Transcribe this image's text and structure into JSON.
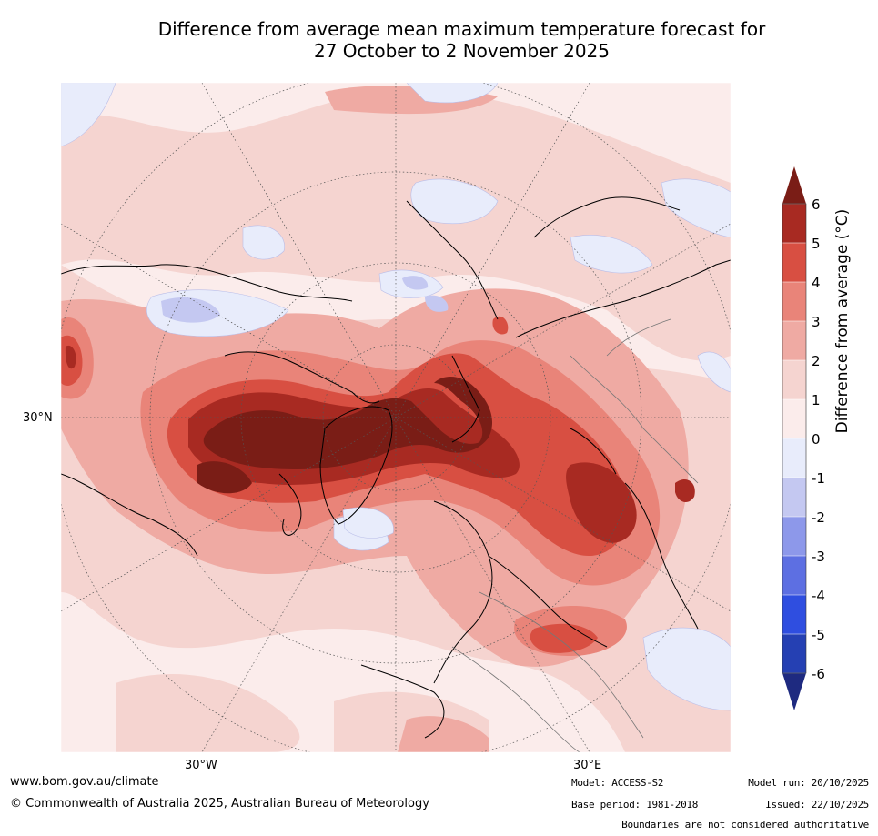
{
  "title": {
    "line1": "Difference from average mean maximum temperature forecast for",
    "line2": "27 October to 2 November 2025"
  },
  "map": {
    "lon_labels": [
      "30°W",
      "30°E"
    ],
    "lat_labels": [
      "30°N"
    ]
  },
  "colorbar": {
    "label": "Difference from average (°C)",
    "ticks": [
      "6",
      "5",
      "4",
      "3",
      "2",
      "1",
      "0",
      "-1",
      "-2",
      "-3",
      "-4",
      "-5",
      "-6"
    ],
    "colors": {
      "above_6": "#7a1d16",
      "5_6": "#a82a22",
      "4_5": "#d84f42",
      "3_4": "#e98479",
      "2_3": "#efaaa3",
      "1_2": "#f5d4d0",
      "0_1": "#fbeceb",
      "m1_0": "#e8ecfb",
      "m2_m1": "#c4c8f1",
      "m3_m2": "#8d98ea",
      "m4_m3": "#5d6fe2",
      "m5_m4": "#2f4ee0",
      "m6_m5": "#2540b3",
      "below_m6": "#1e2a80"
    }
  },
  "footer": {
    "website": "www.bom.gov.au/climate",
    "copyright": "© Commonwealth of Australia 2025, Australian Bureau of Meteorology",
    "model": "Model: ACCESS-S2",
    "base_period": "Base period: 1981-2018",
    "model_run": "Model run: 20/10/2025",
    "issued": "Issued: 22/10/2025",
    "disclaimer": "Boundaries are not considered authoritative"
  }
}
